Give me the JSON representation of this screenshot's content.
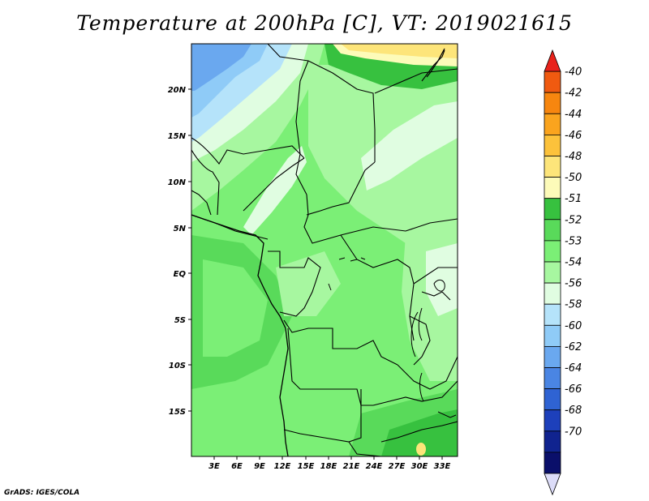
{
  "title": "Temperature at 200hPa [C], VT: 2019021615",
  "credit": "GrADS: IGES/COLA",
  "map": {
    "lat_labels": [
      "20N",
      "15N",
      "10N",
      "5N",
      "EQ",
      "5S",
      "10S",
      "15S"
    ],
    "lon_labels": [
      "3E",
      "6E",
      "9E",
      "12E",
      "15E",
      "18E",
      "21E",
      "24E",
      "27E",
      "30E",
      "33E"
    ],
    "lon_range": [
      0,
      35
    ],
    "lat_range": [
      -20,
      25
    ]
  },
  "colorbar": {
    "labels": [
      "-40",
      "-42",
      "-44",
      "-46",
      "-48",
      "-50",
      "-51",
      "-52",
      "-53",
      "-54",
      "-56",
      "-58",
      "-60",
      "-62",
      "-64",
      "-66",
      "-68",
      "-70"
    ],
    "colors": [
      "#e8221b",
      "#f05a10",
      "#f7860f",
      "#faa41e",
      "#fcc23b",
      "#fde57a",
      "#fdfbb9",
      "#37c13f",
      "#59da5a",
      "#7bef76",
      "#a7f7a0",
      "#e0fde1",
      "#b5e3fa",
      "#8fcbf7",
      "#6aa8ef",
      "#4a85e3",
      "#2f63d3",
      "#1d40bb",
      "#10238f",
      "#0a0f6a",
      "#dcdcf8"
    ]
  }
}
